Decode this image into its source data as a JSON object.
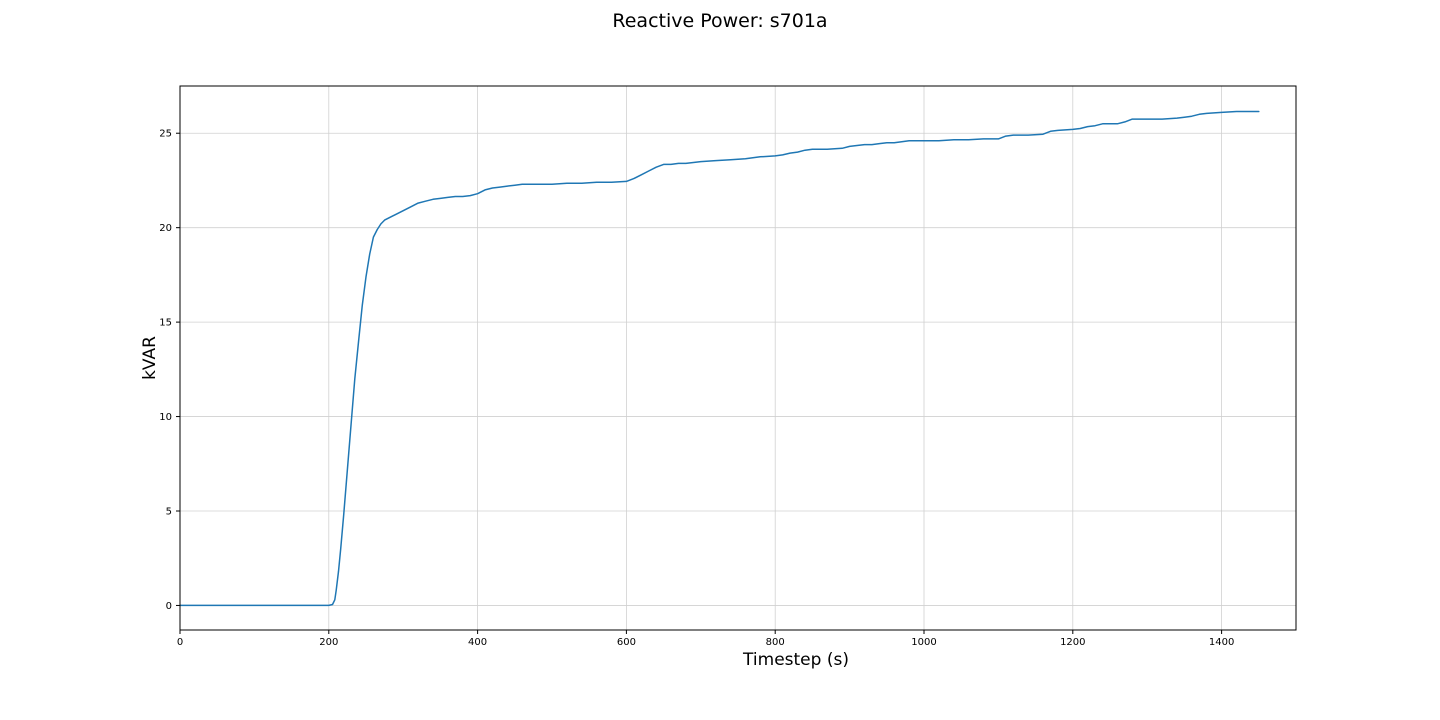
{
  "chart_data": {
    "type": "line",
    "title": "Reactive Power: s701a",
    "xlabel": "Timestep (s)",
    "ylabel": "kVAR",
    "xlim": [
      0,
      1500
    ],
    "ylim": [
      -1.3,
      27.5
    ],
    "xticks": [
      0,
      200,
      400,
      600,
      800,
      1000,
      1200,
      1400
    ],
    "yticks": [
      0,
      5,
      10,
      15,
      20,
      25
    ],
    "grid": true,
    "series_color": "#1f77b4",
    "series": [
      {
        "x": [
          0,
          200,
          205,
          208,
          210,
          213,
          216,
          220,
          225,
          230,
          235,
          240,
          245,
          250,
          255,
          260,
          265,
          270,
          275,
          280,
          285,
          290,
          300,
          310,
          320,
          330,
          340,
          350,
          360,
          370,
          380,
          390,
          400,
          410,
          420,
          430,
          440,
          450,
          460,
          470,
          480,
          500,
          520,
          540,
          560,
          580,
          600,
          610,
          620,
          630,
          640,
          650,
          660,
          670,
          680,
          690,
          700,
          720,
          740,
          760,
          780,
          800,
          810,
          820,
          830,
          840,
          850,
          870,
          890,
          900,
          910,
          920,
          930,
          940,
          950,
          960,
          970,
          980,
          1000,
          1020,
          1040,
          1060,
          1080,
          1100,
          1110,
          1120,
          1140,
          1160,
          1170,
          1180,
          1200,
          1210,
          1220,
          1230,
          1240,
          1260,
          1270,
          1280,
          1300,
          1320,
          1340,
          1350,
          1360,
          1370,
          1380,
          1400,
          1420,
          1450
        ],
        "y": [
          0,
          0,
          0.05,
          0.3,
          0.8,
          1.8,
          3.0,
          4.8,
          7.2,
          9.6,
          12.0,
          14.0,
          15.9,
          17.4,
          18.6,
          19.5,
          19.9,
          20.2,
          20.4,
          20.5,
          20.6,
          20.7,
          20.9,
          21.1,
          21.3,
          21.4,
          21.5,
          21.55,
          21.6,
          21.65,
          21.65,
          21.7,
          21.8,
          22.0,
          22.1,
          22.15,
          22.2,
          22.25,
          22.3,
          22.3,
          22.3,
          22.3,
          22.35,
          22.35,
          22.4,
          22.4,
          22.45,
          22.6,
          22.8,
          23.0,
          23.2,
          23.35,
          23.35,
          23.4,
          23.4,
          23.45,
          23.5,
          23.55,
          23.6,
          23.65,
          23.75,
          23.8,
          23.85,
          23.95,
          24.0,
          24.1,
          24.15,
          24.15,
          24.2,
          24.3,
          24.35,
          24.4,
          24.4,
          24.45,
          24.5,
          24.5,
          24.55,
          24.6,
          24.6,
          24.6,
          24.65,
          24.65,
          24.7,
          24.7,
          24.85,
          24.9,
          24.9,
          24.95,
          25.1,
          25.15,
          25.2,
          25.25,
          25.35,
          25.4,
          25.5,
          25.5,
          25.6,
          25.75,
          25.75,
          25.75,
          25.8,
          25.85,
          25.9,
          26.0,
          26.05,
          26.1,
          26.15,
          26.15
        ]
      }
    ]
  }
}
